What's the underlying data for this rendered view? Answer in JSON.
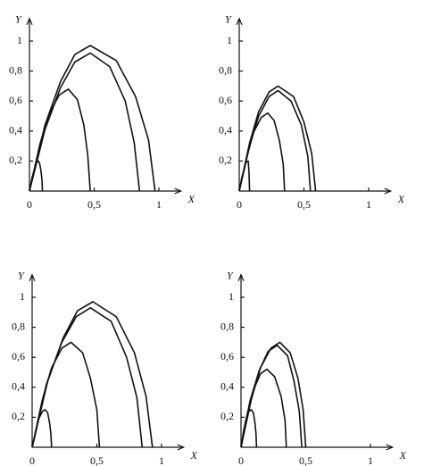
{
  "chart_data": [
    {
      "type": "line",
      "xlabel": "X",
      "ylabel": "Y",
      "xlim": [
        0,
        1.17
      ],
      "ylim": [
        0,
        1.15
      ],
      "xticks": [
        0,
        {
          "value": 0.5,
          "label": "0,5"
        },
        1
      ],
      "yticks": [
        {
          "value": 0.2,
          "label": "0,2"
        },
        {
          "value": 0.4,
          "label": "0,4"
        },
        {
          "value": 0.6,
          "label": "0,6"
        },
        {
          "value": 0.8,
          "label": "0,8"
        },
        1
      ],
      "series": [
        {
          "color": "#111111",
          "x": [
            0,
            0.12,
            0.24,
            0.35,
            0.47,
            0.67,
            0.82,
            0.92,
            0.97
          ],
          "values": [
            0,
            0.44,
            0.73,
            0.91,
            0.97,
            0.87,
            0.63,
            0.34,
            0
          ]
        },
        {
          "color": "#111111",
          "x": [
            0,
            0.12,
            0.24,
            0.35,
            0.47,
            0.62,
            0.74,
            0.81,
            0.85
          ],
          "values": [
            0,
            0.41,
            0.69,
            0.86,
            0.92,
            0.83,
            0.6,
            0.32,
            0
          ]
        },
        {
          "color": "#111111",
          "x": [
            0,
            0.08,
            0.15,
            0.23,
            0.3,
            0.37,
            0.42,
            0.45,
            0.47
          ],
          "values": [
            0,
            0.31,
            0.51,
            0.64,
            0.68,
            0.61,
            0.44,
            0.24,
            0
          ]
        },
        {
          "color": "#111111",
          "x": [
            0,
            0.02,
            0.04,
            0.05,
            0.07,
            0.08,
            0.09,
            0.097,
            0.1
          ],
          "values": [
            0,
            0.09,
            0.15,
            0.19,
            0.2,
            0.18,
            0.13,
            0.07,
            0
          ]
        }
      ]
    },
    {
      "type": "line",
      "xlabel": "X",
      "ylabel": "Y",
      "xlim": [
        0,
        1.17
      ],
      "ylim": [
        0,
        1.15
      ],
      "xticks": [
        0,
        {
          "value": 0.5,
          "label": "0,5"
        },
        1
      ],
      "yticks": [
        {
          "value": 0.2,
          "label": "0,2"
        },
        {
          "value": 0.4,
          "label": "0,4"
        },
        {
          "value": 0.6,
          "label": "0,6"
        },
        {
          "value": 0.8,
          "label": "0,8"
        },
        1
      ],
      "series": [
        {
          "color": "#111111",
          "x": [
            0,
            0.08,
            0.15,
            0.23,
            0.3,
            0.42,
            0.5,
            0.56,
            0.59
          ],
          "values": [
            0,
            0.32,
            0.53,
            0.66,
            0.7,
            0.63,
            0.46,
            0.25,
            0
          ]
        },
        {
          "color": "#111111",
          "x": [
            0,
            0.08,
            0.15,
            0.23,
            0.3,
            0.4,
            0.48,
            0.53,
            0.55
          ],
          "values": [
            0,
            0.3,
            0.5,
            0.63,
            0.67,
            0.6,
            0.44,
            0.23,
            0
          ]
        },
        {
          "color": "#111111",
          "x": [
            0,
            0.06,
            0.11,
            0.17,
            0.22,
            0.27,
            0.31,
            0.34,
            0.35
          ],
          "values": [
            0,
            0.23,
            0.39,
            0.49,
            0.52,
            0.47,
            0.34,
            0.18,
            0
          ]
        },
        {
          "color": "#111111",
          "x": [
            0,
            0.02,
            0.04,
            0.05,
            0.07,
            0.075,
            0.08
          ],
          "values": [
            0,
            0.09,
            0.15,
            0.19,
            0.2,
            0.13,
            0
          ]
        }
      ]
    },
    {
      "type": "line",
      "xlabel": "X",
      "ylabel": "Y",
      "xlim": [
        0,
        1.17
      ],
      "ylim": [
        0,
        1.15
      ],
      "xticks": [
        0,
        {
          "value": 0.5,
          "label": "0,5"
        },
        1
      ],
      "yticks": [
        {
          "value": 0.2,
          "label": "0,2"
        },
        {
          "value": 0.4,
          "label": "0,4"
        },
        {
          "value": 0.6,
          "label": "0,6"
        },
        {
          "value": 0.8,
          "label": "0,8"
        },
        1
      ],
      "series": [
        {
          "color": "#111111",
          "x": [
            0,
            0.12,
            0.24,
            0.35,
            0.47,
            0.65,
            0.79,
            0.88,
            0.93
          ],
          "values": [
            0,
            0.44,
            0.73,
            0.91,
            0.97,
            0.87,
            0.63,
            0.34,
            0
          ]
        },
        {
          "color": "#111111",
          "x": [
            0,
            0.11,
            0.23,
            0.34,
            0.45,
            0.61,
            0.73,
            0.81,
            0.85
          ],
          "values": [
            0,
            0.42,
            0.7,
            0.87,
            0.93,
            0.84,
            0.6,
            0.33,
            0
          ]
        },
        {
          "color": "#111111",
          "x": [
            0,
            0.08,
            0.15,
            0.23,
            0.3,
            0.39,
            0.45,
            0.5,
            0.52
          ],
          "values": [
            0,
            0.32,
            0.53,
            0.66,
            0.7,
            0.63,
            0.46,
            0.25,
            0
          ]
        },
        {
          "color": "#111111",
          "x": [
            0,
            0.03,
            0.05,
            0.08,
            0.1,
            0.12,
            0.135,
            0.145,
            0.15
          ],
          "values": [
            0,
            0.11,
            0.19,
            0.24,
            0.25,
            0.23,
            0.16,
            0.09,
            0
          ]
        }
      ]
    },
    {
      "type": "line",
      "xlabel": "X",
      "ylabel": "Y",
      "xlim": [
        0,
        1.17
      ],
      "ylim": [
        0,
        1.15
      ],
      "xticks": [
        0,
        {
          "value": 0.5,
          "label": "0,5"
        },
        1
      ],
      "yticks": [
        {
          "value": 0.2,
          "label": "0,2"
        },
        {
          "value": 0.4,
          "label": "0,4"
        },
        {
          "value": 0.6,
          "label": "0,6"
        },
        {
          "value": 0.8,
          "label": "0,8"
        },
        1
      ],
      "series": [
        {
          "color": "#111111",
          "x": [
            0,
            0.08,
            0.15,
            0.23,
            0.3,
            0.38,
            0.44,
            0.48,
            0.5
          ],
          "values": [
            0,
            0.32,
            0.53,
            0.66,
            0.7,
            0.63,
            0.46,
            0.25,
            0
          ]
        },
        {
          "color": "#111111",
          "x": [
            0,
            0.07,
            0.14,
            0.21,
            0.28,
            0.36,
            0.41,
            0.45,
            0.47
          ],
          "values": [
            0,
            0.31,
            0.51,
            0.64,
            0.68,
            0.61,
            0.44,
            0.24,
            0
          ]
        },
        {
          "color": "#111111",
          "x": [
            0,
            0.05,
            0.1,
            0.15,
            0.2,
            0.26,
            0.31,
            0.34,
            0.35
          ],
          "values": [
            0,
            0.23,
            0.39,
            0.49,
            0.52,
            0.47,
            0.34,
            0.18,
            0
          ]
        },
        {
          "color": "#111111",
          "x": [
            0,
            0.02,
            0.04,
            0.06,
            0.08,
            0.096,
            0.108,
            0.116,
            0.12
          ],
          "values": [
            0,
            0.11,
            0.19,
            0.24,
            0.25,
            0.23,
            0.16,
            0.09,
            0
          ]
        }
      ]
    }
  ]
}
